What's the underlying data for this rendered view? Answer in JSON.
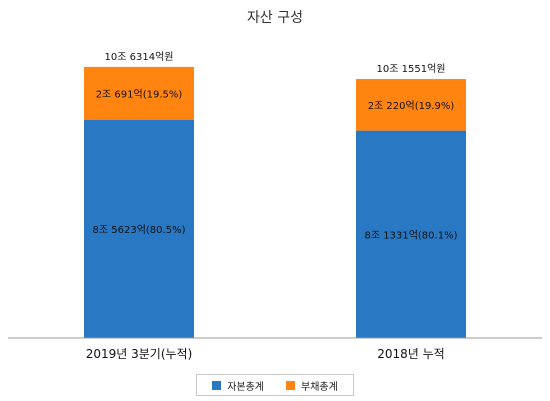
{
  "chart_data": {
    "type": "bar",
    "stacked": true,
    "title": "자산 구성",
    "categories": [
      "2019년 3분기(누적)",
      "2018년 누적"
    ],
    "series": [
      {
        "name": "자본총계",
        "color": "#2878c3",
        "values": [
          85623,
          81331
        ],
        "labels": [
          "8조 5623억(80.5%)",
          "8조 1331억(80.1%)"
        ]
      },
      {
        "name": "부채총계",
        "color": "#ff8410",
        "values": [
          20691,
          20220
        ],
        "labels": [
          "2조 691억(19.5%)",
          "2조 220억(19.9%)"
        ]
      }
    ],
    "totals": [
      106314,
      101551
    ],
    "total_labels": [
      "10조 6314억원",
      "10조 1551억원"
    ],
    "unit": "억원",
    "legend_position": "bottom",
    "grid": false
  }
}
